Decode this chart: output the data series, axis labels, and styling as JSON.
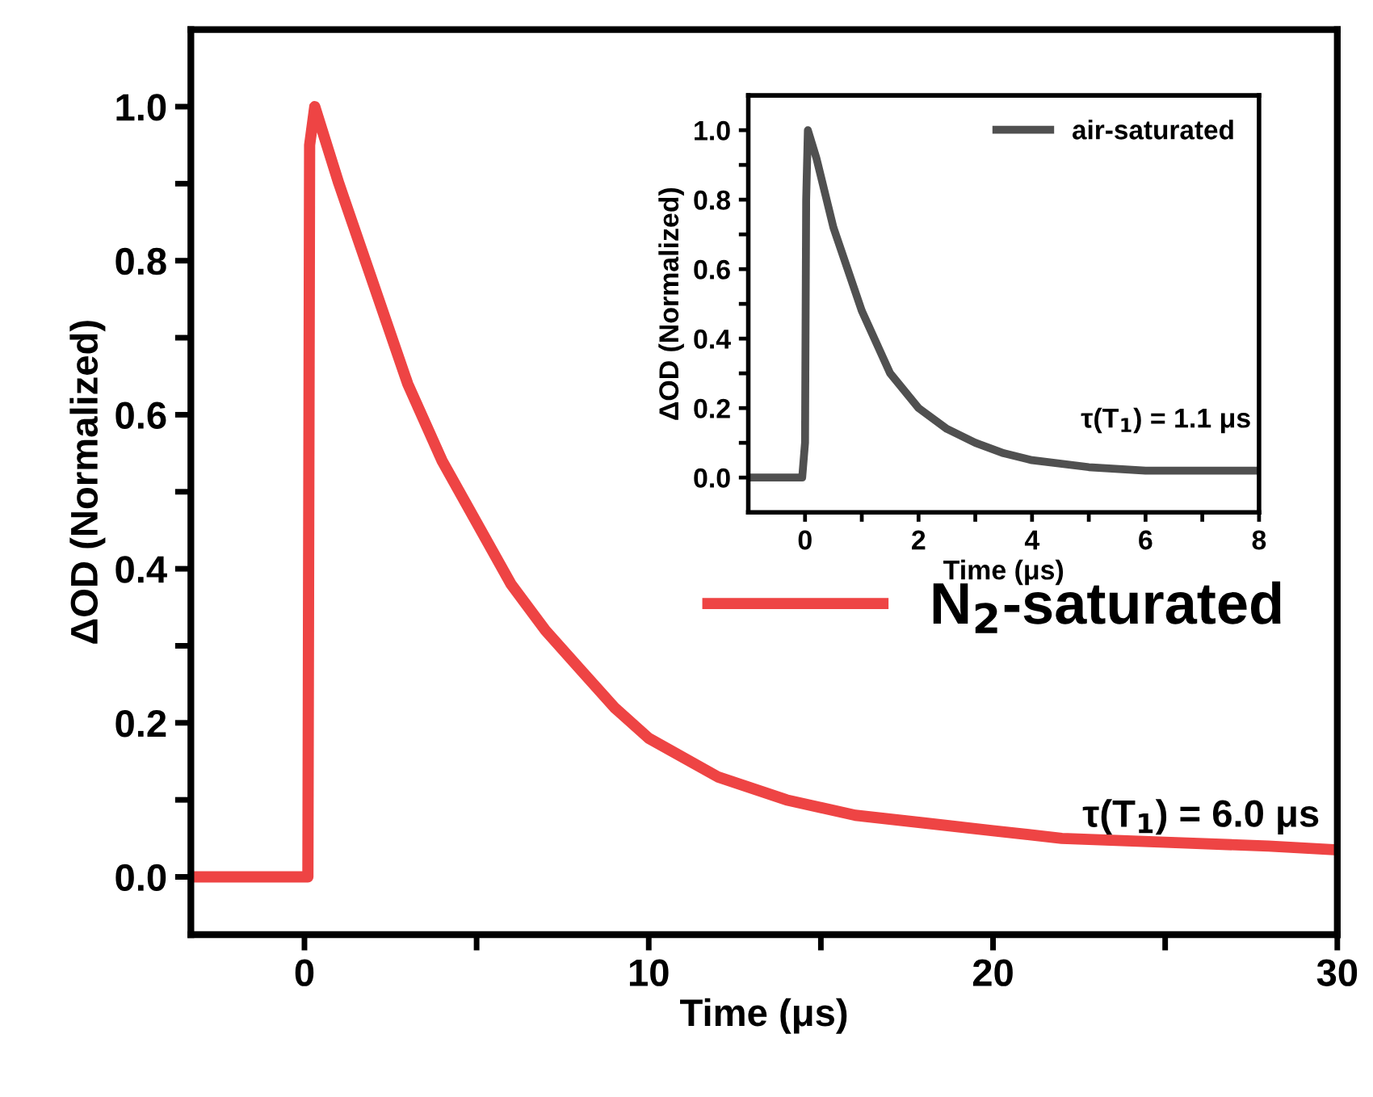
{
  "chart_data": [
    {
      "type": "line",
      "xlabel": "Time (μs)",
      "ylabel": "ΔOD (Normalized)",
      "series": [
        {
          "name": "N$_{2}$-saturated",
          "color": "#ee4444",
          "x": [
            -3.2,
            -2,
            -1,
            -0.1,
            0.1,
            0.15,
            0.3,
            1,
            2,
            3,
            4,
            5,
            6,
            7,
            8,
            9,
            10,
            12,
            14,
            16,
            18,
            20,
            22,
            25,
            28,
            30
          ],
          "values": [
            0.0,
            0.0,
            0.0,
            0.0,
            0.0,
            0.95,
            1.0,
            0.9,
            0.77,
            0.64,
            0.54,
            0.46,
            0.38,
            0.32,
            0.27,
            0.22,
            0.18,
            0.13,
            0.1,
            0.08,
            0.07,
            0.06,
            0.05,
            0.045,
            0.04,
            0.035
          ]
        }
      ],
      "xlim": [
        -3.3,
        30
      ],
      "ylim": [
        -0.075,
        1.1
      ],
      "xticks": [
        0,
        {
          "value": 5,
          "label": null
        },
        10,
        {
          "value": 15,
          "label": null
        },
        20,
        {
          "value": 25,
          "label": null
        },
        30
      ],
      "yticks": [
        "0.0",
        {
          "value": 0.1,
          "label": null
        },
        0.2,
        {
          "value": 0.3,
          "label": null
        },
        0.4,
        {
          "value": 0.5,
          "label": null
        },
        0.6,
        {
          "value": 0.7,
          "label": null
        },
        0.8,
        {
          "value": 0.9,
          "label": null
        },
        "1.0"
      ],
      "annotations": [
        "τ(T$_{1}$) = 6.0 μs"
      ],
      "legend": "right",
      "grid": false,
      "marker": "none",
      "line_style": "solid"
    },
    {
      "type": "line",
      "xlabel": "Time (μs)",
      "ylabel": "ΔOD (Normalized)",
      "series": [
        {
          "name": "air-saturated",
          "color": "#505050",
          "x": [
            -1,
            -0.5,
            -0.05,
            0,
            0.02,
            0.05,
            0.2,
            0.5,
            1,
            1.5,
            2,
            2.5,
            3,
            3.5,
            4,
            5,
            6,
            7,
            8
          ],
          "values": [
            0.0,
            0.0,
            0.0,
            0.1,
            0.8,
            1.0,
            0.92,
            0.72,
            0.48,
            0.3,
            0.2,
            0.14,
            0.1,
            0.07,
            0.05,
            0.03,
            0.02,
            0.02,
            0.02
          ]
        }
      ],
      "xlim": [
        -1,
        8
      ],
      "ylim": [
        -0.1,
        1.1
      ],
      "xticks": [
        0,
        {
          "value": 1,
          "label": null
        },
        2,
        {
          "value": 3,
          "label": null
        },
        4,
        {
          "value": 5,
          "label": null
        },
        6,
        {
          "value": 7,
          "label": null
        },
        8
      ],
      "yticks": [
        "0.0",
        {
          "value": 0.1,
          "label": null
        },
        0.2,
        {
          "value": 0.3,
          "label": null
        },
        0.4,
        {
          "value": 0.5,
          "label": null
        },
        0.6,
        {
          "value": 0.7,
          "label": null
        },
        0.8,
        {
          "value": 0.9,
          "label": null
        },
        "1.0"
      ],
      "annotations": [
        "τ(T$_{1}$) = 1.1 μs"
      ],
      "legend": "top right",
      "grid": false,
      "marker": "none",
      "line_style": "solid"
    }
  ]
}
